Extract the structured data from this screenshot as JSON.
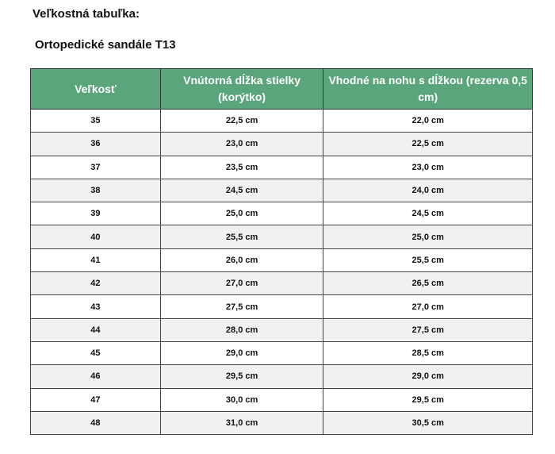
{
  "title": "Veľkostná tabuľka:",
  "subtitle": "Ortopedické sandále T13",
  "header_color": "#5aa57b",
  "table": {
    "headers": [
      "Veľkosť",
      "Vnútorná dĺžka stielky (korýtko)",
      "Vhodné na nohu s dĺžkou (rezerva 0,5 cm)"
    ],
    "rows": [
      [
        "35",
        "22,5 cm",
        "22,0 cm"
      ],
      [
        "36",
        "23,0 cm",
        "22,5 cm"
      ],
      [
        "37",
        "23,5 cm",
        "23,0 cm"
      ],
      [
        "38",
        "24,5 cm",
        "24,0 cm"
      ],
      [
        "39",
        "25,0 cm",
        "24,5 cm"
      ],
      [
        "40",
        "25,5 cm",
        "25,0 cm"
      ],
      [
        "41",
        "26,0 cm",
        "25,5 cm"
      ],
      [
        "42",
        "27,0 cm",
        "26,5 cm"
      ],
      [
        "43",
        "27,5 cm",
        "27,0 cm"
      ],
      [
        "44",
        "28,0 cm",
        "27,5 cm"
      ],
      [
        "45",
        "29,0 cm",
        "28,5 cm"
      ],
      [
        "46",
        "29,5 cm",
        "29,0 cm"
      ],
      [
        "47",
        "30,0 cm",
        "29,5 cm"
      ],
      [
        "48",
        "31,0 cm",
        "30,5 cm"
      ]
    ]
  }
}
